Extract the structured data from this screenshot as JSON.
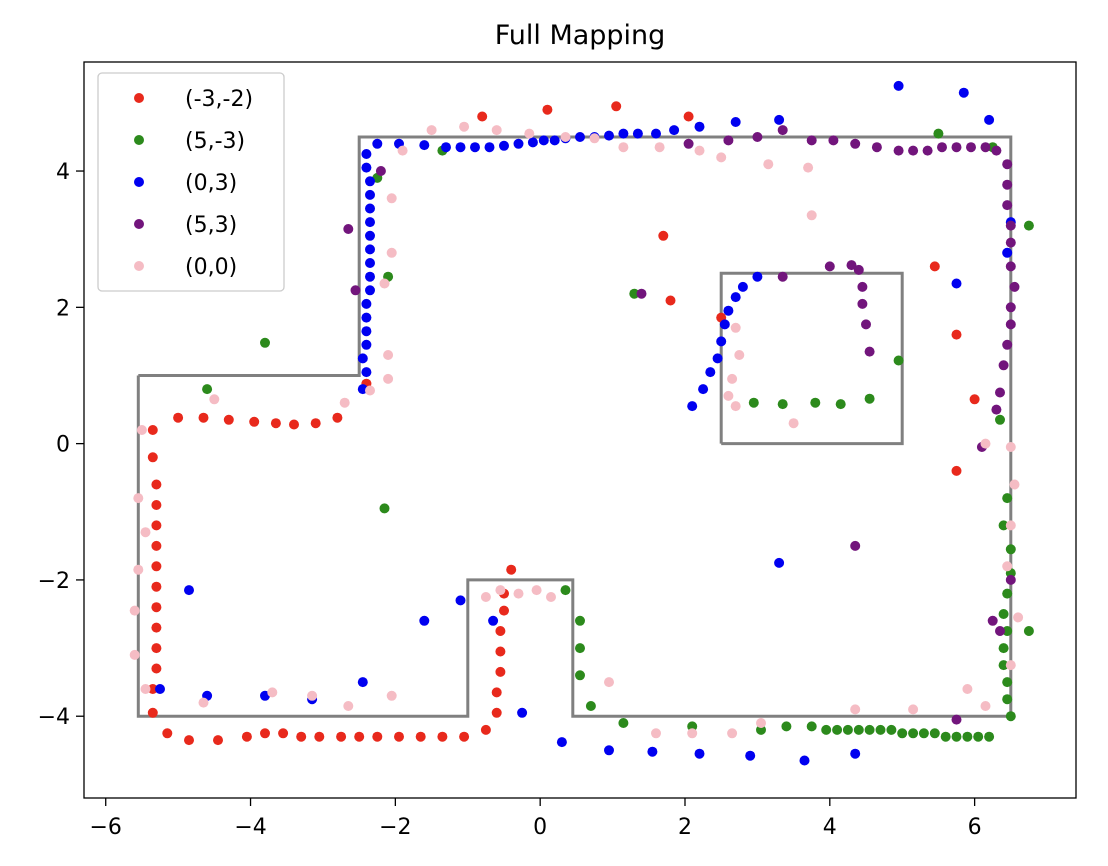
{
  "chart_data": {
    "type": "scatter",
    "title": "Full Mapping",
    "xlabel": "",
    "ylabel": "",
    "xlim": [
      -6.3,
      7.4
    ],
    "ylim": [
      -5.2,
      5.6
    ],
    "xticks": [
      -6,
      -4,
      -2,
      0,
      2,
      4,
      6
    ],
    "yticks": [
      -4,
      -2,
      0,
      2,
      4
    ],
    "xtick_labels": [
      "−6",
      "−4",
      "−2",
      "0",
      "2",
      "4",
      "6"
    ],
    "ytick_labels": [
      "−4",
      "−2",
      "0",
      "2",
      "4"
    ],
    "grid": false,
    "legend_position": "upper-left",
    "reference_map": [
      {
        "x": [
          -5.55,
          -2.5,
          -2.5,
          6.5,
          6.5,
          0.45,
          0.45,
          -1.0,
          -1.0,
          -5.55,
          -5.55
        ],
        "y": [
          1.0,
          1.0,
          4.5,
          4.5,
          -4.0,
          -4.0,
          -2.0,
          -2.0,
          -4.0,
          -4.0,
          1.0
        ],
        "color": "#808080"
      },
      {
        "x": [
          2.5,
          5.0,
          5.0,
          2.5,
          2.5
        ],
        "y": [
          0.0,
          0.0,
          2.5,
          2.5,
          0.0
        ],
        "color": "#808080"
      }
    ],
    "series": [
      {
        "name": "(-3,-2)",
        "color": "#e8291c",
        "points": [
          [
            -5.35,
            0.2
          ],
          [
            -5.35,
            -0.2
          ],
          [
            -5.3,
            -0.6
          ],
          [
            -5.3,
            -0.9
          ],
          [
            -5.3,
            -1.2
          ],
          [
            -5.3,
            -1.5
          ],
          [
            -5.3,
            -1.8
          ],
          [
            -5.3,
            -2.1
          ],
          [
            -5.3,
            -2.4
          ],
          [
            -5.3,
            -2.7
          ],
          [
            -5.3,
            -3.0
          ],
          [
            -5.3,
            -3.3
          ],
          [
            -5.35,
            -3.6
          ],
          [
            -5.35,
            -3.95
          ],
          [
            -5.15,
            -4.25
          ],
          [
            -4.85,
            -4.35
          ],
          [
            -4.45,
            -4.35
          ],
          [
            -4.05,
            -4.3
          ],
          [
            -3.8,
            -4.25
          ],
          [
            -3.55,
            -4.25
          ],
          [
            -3.3,
            -4.3
          ],
          [
            -3.05,
            -4.3
          ],
          [
            -2.75,
            -4.3
          ],
          [
            -2.5,
            -4.3
          ],
          [
            -2.25,
            -4.3
          ],
          [
            -1.95,
            -4.3
          ],
          [
            -1.65,
            -4.3
          ],
          [
            -1.35,
            -4.3
          ],
          [
            -1.05,
            -4.3
          ],
          [
            -0.75,
            -4.2
          ],
          [
            -0.6,
            -3.95
          ],
          [
            -0.6,
            -3.65
          ],
          [
            -0.55,
            -3.35
          ],
          [
            -0.55,
            -3.05
          ],
          [
            -0.55,
            -2.75
          ],
          [
            -0.5,
            -2.45
          ],
          [
            -0.5,
            -2.2
          ],
          [
            -0.4,
            -1.85
          ],
          [
            -5.0,
            0.38
          ],
          [
            -4.65,
            0.38
          ],
          [
            -4.3,
            0.35
          ],
          [
            -3.95,
            0.32
          ],
          [
            -3.65,
            0.3
          ],
          [
            -3.4,
            0.28
          ],
          [
            -3.1,
            0.3
          ],
          [
            -2.8,
            0.38
          ],
          [
            -2.4,
            0.88
          ],
          [
            -0.8,
            4.8
          ],
          [
            0.1,
            4.9
          ],
          [
            1.05,
            4.95
          ],
          [
            2.05,
            4.8
          ],
          [
            1.7,
            3.05
          ],
          [
            1.8,
            2.1
          ],
          [
            5.45,
            2.6
          ],
          [
            5.75,
            1.6
          ],
          [
            6.0,
            0.65
          ],
          [
            5.75,
            -0.4
          ],
          [
            2.5,
            1.85
          ]
        ]
      },
      {
        "name": "(5,-3)",
        "color": "#2c8a1c",
        "points": [
          [
            0.35,
            -2.15
          ],
          [
            0.55,
            -2.6
          ],
          [
            0.55,
            -3.0
          ],
          [
            0.55,
            -3.4
          ],
          [
            0.7,
            -3.85
          ],
          [
            1.15,
            -4.1
          ],
          [
            2.1,
            -4.15
          ],
          [
            3.05,
            -4.2
          ],
          [
            3.4,
            -4.15
          ],
          [
            3.75,
            -4.15
          ],
          [
            3.95,
            -4.2
          ],
          [
            4.1,
            -4.2
          ],
          [
            4.25,
            -4.2
          ],
          [
            4.4,
            -4.2
          ],
          [
            4.55,
            -4.2
          ],
          [
            4.7,
            -4.2
          ],
          [
            4.85,
            -4.2
          ],
          [
            5.0,
            -4.25
          ],
          [
            5.15,
            -4.25
          ],
          [
            5.3,
            -4.25
          ],
          [
            5.45,
            -4.25
          ],
          [
            5.6,
            -4.3
          ],
          [
            5.75,
            -4.3
          ],
          [
            5.9,
            -4.3
          ],
          [
            6.05,
            -4.3
          ],
          [
            6.2,
            -4.3
          ],
          [
            6.5,
            -4.0
          ],
          [
            6.45,
            -3.75
          ],
          [
            6.45,
            -3.5
          ],
          [
            6.4,
            -3.25
          ],
          [
            6.4,
            -3.0
          ],
          [
            6.45,
            -2.75
          ],
          [
            6.4,
            -2.5
          ],
          [
            6.45,
            -2.2
          ],
          [
            6.5,
            -1.9
          ],
          [
            6.5,
            -1.55
          ],
          [
            6.4,
            -1.2
          ],
          [
            6.45,
            -0.8
          ],
          [
            6.35,
            0.35
          ],
          [
            6.75,
            3.2
          ],
          [
            6.75,
            -2.75
          ],
          [
            2.95,
            0.6
          ],
          [
            3.35,
            0.58
          ],
          [
            3.8,
            0.6
          ],
          [
            4.15,
            0.58
          ],
          [
            4.55,
            0.66
          ],
          [
            4.95,
            1.22
          ],
          [
            -4.6,
            0.8
          ],
          [
            -3.8,
            1.48
          ],
          [
            -2.1,
            2.45
          ],
          [
            -2.25,
            3.9
          ],
          [
            -2.15,
            -0.95
          ],
          [
            -1.35,
            4.3
          ],
          [
            1.3,
            2.2
          ],
          [
            5.5,
            4.55
          ],
          [
            6.25,
            4.35
          ]
        ]
      },
      {
        "name": "(0,3)",
        "color": "#0000f0",
        "points": [
          [
            -2.45,
            0.8
          ],
          [
            -2.4,
            1.05
          ],
          [
            -2.45,
            1.25
          ],
          [
            -2.4,
            1.45
          ],
          [
            -2.4,
            1.65
          ],
          [
            -2.4,
            1.85
          ],
          [
            -2.4,
            2.05
          ],
          [
            -2.35,
            2.25
          ],
          [
            -2.35,
            2.45
          ],
          [
            -2.35,
            2.65
          ],
          [
            -2.35,
            2.85
          ],
          [
            -2.35,
            3.05
          ],
          [
            -2.35,
            3.25
          ],
          [
            -2.35,
            3.45
          ],
          [
            -2.35,
            3.65
          ],
          [
            -2.35,
            3.85
          ],
          [
            -2.4,
            4.05
          ],
          [
            -2.4,
            4.25
          ],
          [
            -2.25,
            4.4
          ],
          [
            -1.95,
            4.4
          ],
          [
            -1.6,
            4.38
          ],
          [
            -1.3,
            4.35
          ],
          [
            -1.1,
            4.35
          ],
          [
            -0.9,
            4.35
          ],
          [
            -0.7,
            4.35
          ],
          [
            -0.5,
            4.37
          ],
          [
            -0.3,
            4.4
          ],
          [
            -0.1,
            4.42
          ],
          [
            0.05,
            4.45
          ],
          [
            0.2,
            4.45
          ],
          [
            0.35,
            4.48
          ],
          [
            0.55,
            4.5
          ],
          [
            0.75,
            4.5
          ],
          [
            0.95,
            4.52
          ],
          [
            1.15,
            4.55
          ],
          [
            1.35,
            4.55
          ],
          [
            1.6,
            4.55
          ],
          [
            1.85,
            4.6
          ],
          [
            2.2,
            4.65
          ],
          [
            2.7,
            4.72
          ],
          [
            3.3,
            4.75
          ],
          [
            2.1,
            0.55
          ],
          [
            2.25,
            0.8
          ],
          [
            2.35,
            1.05
          ],
          [
            2.45,
            1.25
          ],
          [
            2.5,
            1.5
          ],
          [
            2.55,
            1.75
          ],
          [
            2.6,
            1.95
          ],
          [
            2.7,
            2.15
          ],
          [
            2.8,
            2.3
          ],
          [
            3.0,
            2.45
          ],
          [
            -5.25,
            -3.6
          ],
          [
            -4.6,
            -3.7
          ],
          [
            -3.8,
            -3.7
          ],
          [
            -3.15,
            -3.75
          ],
          [
            -2.45,
            -3.5
          ],
          [
            -4.85,
            -2.15
          ],
          [
            -1.6,
            -2.6
          ],
          [
            -1.1,
            -2.3
          ],
          [
            -0.65,
            -2.6
          ],
          [
            -0.25,
            -3.95
          ],
          [
            0.3,
            -4.38
          ],
          [
            0.95,
            -4.5
          ],
          [
            1.55,
            -4.52
          ],
          [
            2.2,
            -4.55
          ],
          [
            2.9,
            -4.58
          ],
          [
            3.65,
            -4.65
          ],
          [
            4.35,
            -4.55
          ],
          [
            3.3,
            -1.75
          ],
          [
            4.95,
            5.25
          ],
          [
            5.85,
            5.15
          ],
          [
            6.2,
            4.75
          ],
          [
            5.75,
            2.35
          ],
          [
            6.5,
            3.25
          ],
          [
            6.45,
            2.8
          ]
        ]
      },
      {
        "name": "(5,3)",
        "color": "#72157c",
        "points": [
          [
            2.05,
            4.4
          ],
          [
            2.6,
            4.45
          ],
          [
            3.0,
            4.5
          ],
          [
            3.35,
            4.6
          ],
          [
            3.75,
            4.45
          ],
          [
            4.05,
            4.45
          ],
          [
            4.35,
            4.4
          ],
          [
            4.65,
            4.35
          ],
          [
            4.95,
            4.3
          ],
          [
            5.15,
            4.3
          ],
          [
            5.35,
            4.3
          ],
          [
            5.55,
            4.35
          ],
          [
            5.75,
            4.35
          ],
          [
            5.95,
            4.35
          ],
          [
            6.15,
            4.35
          ],
          [
            6.3,
            4.3
          ],
          [
            6.45,
            4.1
          ],
          [
            6.45,
            3.8
          ],
          [
            6.45,
            3.5
          ],
          [
            6.5,
            3.2
          ],
          [
            6.5,
            2.95
          ],
          [
            6.5,
            2.6
          ],
          [
            6.55,
            2.3
          ],
          [
            6.5,
            2.0
          ],
          [
            6.5,
            1.75
          ],
          [
            6.45,
            1.45
          ],
          [
            6.4,
            1.15
          ],
          [
            6.35,
            0.75
          ],
          [
            6.3,
            0.5
          ],
          [
            4.0,
            2.6
          ],
          [
            4.3,
            2.62
          ],
          [
            4.4,
            2.55
          ],
          [
            4.45,
            2.3
          ],
          [
            4.45,
            2.05
          ],
          [
            4.5,
            1.75
          ],
          [
            4.55,
            1.35
          ],
          [
            3.35,
            2.45
          ],
          [
            -2.65,
            3.15
          ],
          [
            -2.55,
            2.25
          ],
          [
            -2.2,
            4.0
          ],
          [
            1.4,
            2.2
          ],
          [
            4.35,
            -1.5
          ],
          [
            5.75,
            -4.05
          ],
          [
            6.25,
            -2.6
          ],
          [
            6.35,
            -2.75
          ],
          [
            6.5,
            -2.0
          ],
          [
            6.1,
            -0.05
          ]
        ]
      },
      {
        "name": "(0,0)",
        "color": "#f5bcc4",
        "points": [
          [
            -5.5,
            0.2
          ],
          [
            -5.55,
            -0.8
          ],
          [
            -5.45,
            -1.3
          ],
          [
            -5.55,
            -1.85
          ],
          [
            -5.6,
            -2.45
          ],
          [
            -5.6,
            -3.1
          ],
          [
            -5.45,
            -3.6
          ],
          [
            -4.65,
            -3.8
          ],
          [
            -3.7,
            -3.65
          ],
          [
            -3.15,
            -3.7
          ],
          [
            -2.65,
            -3.85
          ],
          [
            -2.05,
            -3.7
          ],
          [
            -4.5,
            0.65
          ],
          [
            -2.7,
            0.6
          ],
          [
            -2.35,
            0.78
          ],
          [
            -2.1,
            0.95
          ],
          [
            -2.1,
            1.3
          ],
          [
            -2.15,
            2.35
          ],
          [
            -2.05,
            2.8
          ],
          [
            -2.05,
            3.6
          ],
          [
            -1.9,
            4.3
          ],
          [
            -1.5,
            4.6
          ],
          [
            -1.05,
            4.65
          ],
          [
            -0.6,
            4.6
          ],
          [
            -0.15,
            4.55
          ],
          [
            0.35,
            4.5
          ],
          [
            0.75,
            4.48
          ],
          [
            1.15,
            4.35
          ],
          [
            1.65,
            4.35
          ],
          [
            2.2,
            4.3
          ],
          [
            2.5,
            4.2
          ],
          [
            3.15,
            4.1
          ],
          [
            3.7,
            4.05
          ],
          [
            3.75,
            3.35
          ],
          [
            -0.75,
            -2.25
          ],
          [
            -0.55,
            -2.15
          ],
          [
            -0.3,
            -2.2
          ],
          [
            -0.05,
            -2.15
          ],
          [
            0.15,
            -2.25
          ],
          [
            0.95,
            -3.5
          ],
          [
            1.6,
            -4.25
          ],
          [
            2.1,
            -4.25
          ],
          [
            2.65,
            -4.25
          ],
          [
            3.05,
            -4.1
          ],
          [
            4.35,
            -3.9
          ],
          [
            5.15,
            -3.9
          ],
          [
            5.9,
            -3.6
          ],
          [
            6.15,
            -3.85
          ],
          [
            6.5,
            -3.25
          ],
          [
            6.6,
            -2.55
          ],
          [
            6.45,
            -1.8
          ],
          [
            6.5,
            -1.2
          ],
          [
            6.55,
            -0.6
          ],
          [
            6.5,
            -0.05
          ],
          [
            2.7,
            1.7
          ],
          [
            2.75,
            1.3
          ],
          [
            2.65,
            0.95
          ],
          [
            2.7,
            0.55
          ],
          [
            2.6,
            0.7
          ],
          [
            3.5,
            0.3
          ],
          [
            6.15,
            0.0
          ]
        ]
      }
    ]
  }
}
